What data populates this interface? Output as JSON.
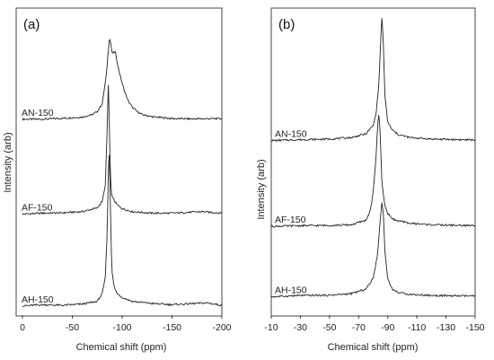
{
  "chart_data": [
    {
      "type": "line",
      "panel_label": "(a)",
      "xlabel": "Chemical shift (ppm)",
      "ylabel": "Intensity (arb)",
      "xlim": [
        0,
        -200
      ],
      "x_ticks": [
        0,
        -50,
        -100,
        -150,
        -200
      ],
      "x_tick_labels": [
        "0",
        "-50",
        "-100",
        "-150",
        "-200"
      ],
      "ylim": [
        0,
        1
      ],
      "grid": false,
      "series": [
        {
          "name": "AN-150",
          "baseline": 0.64,
          "x": [
            0,
            -20,
            -40,
            -60,
            -70,
            -75,
            -80,
            -84,
            -87,
            -88,
            -90,
            -93,
            -96,
            -99,
            -102,
            -106,
            -110,
            -115,
            -120,
            -130,
            -150,
            -170,
            -200
          ],
          "y": [
            0.64,
            0.64,
            0.643,
            0.647,
            0.655,
            0.665,
            0.69,
            0.78,
            0.9,
            0.9,
            0.855,
            0.86,
            0.81,
            0.77,
            0.735,
            0.7,
            0.68,
            0.665,
            0.655,
            0.648,
            0.642,
            0.641,
            0.642
          ]
        },
        {
          "name": "AF-150",
          "baseline": 0.33,
          "x": [
            0,
            -20,
            -40,
            -60,
            -75,
            -80,
            -83,
            -85,
            -86,
            -87,
            -88,
            -89,
            -91,
            -95,
            -100,
            -110,
            -130,
            -150,
            -180,
            -200
          ],
          "y": [
            0.33,
            0.333,
            0.334,
            0.338,
            0.35,
            0.372,
            0.42,
            0.6,
            0.77,
            0.65,
            0.48,
            0.4,
            0.38,
            0.36,
            0.348,
            0.338,
            0.333,
            0.333,
            0.338,
            0.333
          ]
        },
        {
          "name": "AH-150",
          "baseline": 0.03,
          "x": [
            0,
            -20,
            -40,
            -60,
            -75,
            -80,
            -83,
            -85,
            -86,
            -87,
            -88,
            -89,
            -90,
            -92,
            -95,
            -100,
            -110,
            -130,
            -150,
            -185,
            -200
          ],
          "y": [
            0.03,
            0.034,
            0.032,
            0.036,
            0.045,
            0.07,
            0.12,
            0.27,
            0.45,
            0.53,
            0.4,
            0.22,
            0.14,
            0.09,
            0.07,
            0.058,
            0.045,
            0.038,
            0.034,
            0.04,
            0.032
          ]
        }
      ]
    },
    {
      "type": "line",
      "panel_label": "(b)",
      "xlabel": "Chemical shift (ppm)",
      "ylabel": "Intensity (arb)",
      "xlim": [
        -10,
        -150
      ],
      "x_ticks": [
        -10,
        -30,
        -50,
        -70,
        -90,
        -110,
        -130,
        -150
      ],
      "x_tick_labels": [
        "-10",
        "-30",
        "-50",
        "-70",
        "-90",
        "-110",
        "-130",
        "-150"
      ],
      "ylim": [
        0,
        1
      ],
      "grid": false,
      "series": [
        {
          "name": "AN-150",
          "baseline": 0.57,
          "x": [
            -10,
            -30,
            -50,
            -65,
            -75,
            -80,
            -82,
            -84,
            -85,
            -86,
            -87,
            -88,
            -90,
            -93,
            -97,
            -105,
            -120,
            -150
          ],
          "y": [
            0.57,
            0.573,
            0.575,
            0.58,
            0.592,
            0.62,
            0.66,
            0.76,
            0.88,
            0.98,
            0.88,
            0.72,
            0.63,
            0.605,
            0.59,
            0.58,
            0.575,
            0.572
          ]
        },
        {
          "name": "AF-150",
          "baseline": 0.29,
          "x": [
            -10,
            -30,
            -50,
            -65,
            -75,
            -78,
            -80,
            -82,
            -83,
            -84,
            -85,
            -86,
            -88,
            -90,
            -95,
            -105,
            -120,
            -150
          ],
          "y": [
            0.29,
            0.292,
            0.293,
            0.295,
            0.31,
            0.34,
            0.4,
            0.52,
            0.62,
            0.66,
            0.57,
            0.43,
            0.36,
            0.33,
            0.31,
            0.3,
            0.295,
            0.292
          ]
        },
        {
          "name": "AH-150",
          "baseline": 0.06,
          "x": [
            -10,
            -30,
            -50,
            -65,
            -75,
            -80,
            -83,
            -85,
            -86,
            -87,
            -88,
            -90,
            -93,
            -97,
            -105,
            -120,
            -150
          ],
          "y": [
            0.06,
            0.064,
            0.065,
            0.07,
            0.085,
            0.12,
            0.2,
            0.32,
            0.37,
            0.33,
            0.21,
            0.12,
            0.085,
            0.074,
            0.068,
            0.064,
            0.062
          ]
        }
      ]
    }
  ]
}
